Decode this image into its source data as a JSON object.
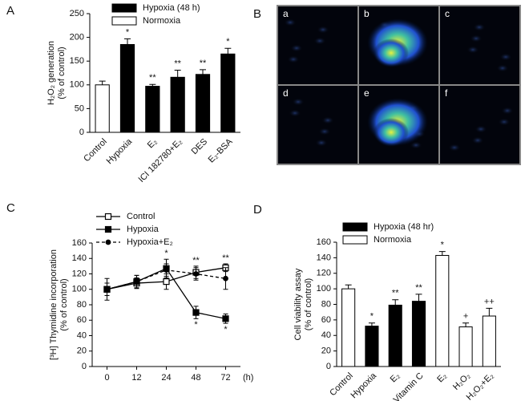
{
  "chart_data": [
    {
      "type": "bar",
      "panel": "A",
      "ylabel": [
        "H₂O₂ generation",
        "(% of control)"
      ],
      "categories": [
        "Control",
        "Hypoxia",
        "E₂",
        "ICI 182780+E₂",
        "DES",
        "E₂-BSA"
      ],
      "series": [
        {
          "name": "Hypoxia (48 h)",
          "color": "#000000",
          "values": [
            null,
            185,
            97,
            116,
            122,
            165
          ],
          "errors": [
            null,
            12,
            4,
            15,
            10,
            12
          ]
        },
        {
          "name": "Normoxia",
          "color": "#ffffff",
          "values": [
            100,
            null,
            null,
            null,
            null,
            null
          ],
          "errors": [
            8,
            null,
            null,
            null,
            null,
            null
          ]
        }
      ],
      "annotations": [
        null,
        "*",
        "**",
        "**",
        "**",
        "*"
      ],
      "ylim": [
        0,
        250
      ],
      "yticks": [
        0,
        50,
        100,
        150,
        200,
        250
      ],
      "legend": "top"
    },
    {
      "type": "line",
      "panel": "C",
      "ylabel": [
        "[³H] Thymidine incorporation",
        "(% of control)"
      ],
      "xlabel": "(h)",
      "categories": [
        "0",
        "12",
        "24",
        "48",
        "72"
      ],
      "series": [
        {
          "name": "Control",
          "color": "#000000",
          "marker": "square-open",
          "values": [
            100,
            108,
            110,
            122,
            128
          ],
          "errors": [
            8,
            7,
            10,
            8,
            5
          ],
          "annotations": [
            null,
            null,
            null,
            "**",
            "**"
          ]
        },
        {
          "name": "Hypoxia",
          "color": "#000000",
          "marker": "square",
          "values": [
            100,
            110,
            127,
            70,
            62
          ],
          "errors": [
            8,
            8,
            12,
            8,
            6
          ],
          "annotations": [
            null,
            null,
            "*",
            "*",
            "*"
          ]
        },
        {
          "name": "Hypoxia+E₂",
          "color": "#000000",
          "marker": "circle",
          "dash": true,
          "values": [
            100,
            110,
            125,
            120,
            114
          ],
          "errors": [
            14,
            8,
            8,
            8,
            14
          ],
          "annotations": [
            null,
            null,
            null,
            null,
            null
          ]
        }
      ],
      "ylim": [
        0,
        160
      ],
      "yticks": [
        0,
        20,
        40,
        60,
        80,
        100,
        120,
        140,
        160
      ],
      "legend": "top"
    },
    {
      "type": "bar",
      "panel": "D",
      "ylabel": [
        "Cell viability assay",
        "(% of control)"
      ],
      "categories": [
        "Control",
        "Hypoxia",
        "E₂",
        "Vitamin C",
        "E₂",
        "H₂O₂",
        "H₂O₂+E₂"
      ],
      "series": [
        {
          "name": "Hypoxia (48 hr)",
          "color": "#000000",
          "values": [
            null,
            52,
            79,
            84,
            null,
            null,
            null
          ],
          "errors": [
            null,
            4,
            7,
            9,
            null,
            null,
            null
          ]
        },
        {
          "name": "Normoxia",
          "color": "#ffffff",
          "values": [
            100,
            null,
            null,
            null,
            143,
            51,
            65
          ],
          "errors": [
            5,
            null,
            null,
            null,
            5,
            5,
            10
          ]
        }
      ],
      "annotations": [
        null,
        "*",
        "**",
        "**",
        "*",
        "+",
        "++"
      ],
      "ylim": [
        0,
        160
      ],
      "yticks": [
        0,
        20,
        40,
        60,
        80,
        100,
        120,
        140,
        160
      ],
      "legend": "top"
    }
  ],
  "image_panel": {
    "panel": "B",
    "tiles": [
      "a",
      "b",
      "c",
      "d",
      "e",
      "f"
    ]
  }
}
